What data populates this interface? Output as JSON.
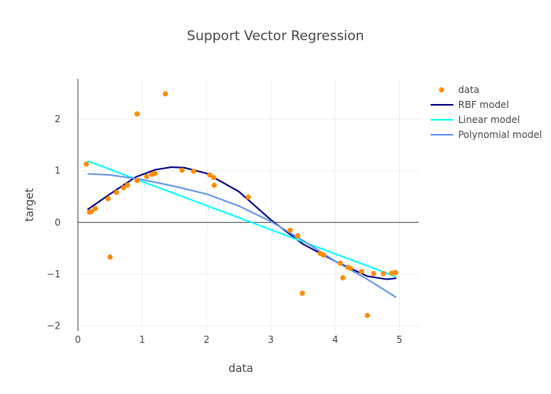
{
  "chart_data": {
    "type": "scatter",
    "title": "Support Vector Regression",
    "xlabel": "data",
    "ylabel": "target",
    "xlim": [
      0,
      5.3
    ],
    "ylim": [
      -2.1,
      2.78
    ],
    "xticks": [
      0,
      1,
      2,
      3,
      4,
      5
    ],
    "yticks": [
      -2,
      -1,
      0,
      1,
      2
    ],
    "grid": true,
    "legend_position": "top-right-outside",
    "series": [
      {
        "name": "data",
        "mode": "markers",
        "color": "#ff8c00",
        "x": [
          0.13,
          0.18,
          0.21,
          0.27,
          0.47,
          0.5,
          0.6,
          0.71,
          0.77,
          0.92,
          0.92,
          1.07,
          1.15,
          1.2,
          1.36,
          1.62,
          1.8,
          2.05,
          2.11,
          2.12,
          2.65,
          3.3,
          3.42,
          3.49,
          3.77,
          3.82,
          4.08,
          4.12,
          4.2,
          4.24,
          4.41,
          4.5,
          4.6,
          4.75,
          4.88,
          4.94
        ],
        "y": [
          1.13,
          0.2,
          0.21,
          0.27,
          0.46,
          -0.67,
          0.58,
          0.67,
          0.72,
          2.1,
          0.81,
          0.89,
          0.93,
          0.95,
          2.49,
          1.01,
          0.99,
          0.92,
          0.87,
          0.72,
          0.49,
          -0.15,
          -0.26,
          -1.37,
          -0.6,
          -0.63,
          -0.79,
          -1.07,
          -0.87,
          -0.89,
          -0.95,
          -1.8,
          -0.99,
          -0.99,
          -0.98,
          -0.97
        ]
      },
      {
        "name": "RBF model",
        "mode": "lines",
        "color": "#000080",
        "x": [
          0.15,
          0.5,
          0.9,
          1.2,
          1.45,
          1.65,
          2.0,
          2.5,
          3.0,
          3.5,
          4.0,
          4.5,
          4.8,
          4.95
        ],
        "y": [
          0.25,
          0.55,
          0.88,
          1.02,
          1.07,
          1.06,
          0.95,
          0.6,
          0.05,
          -0.42,
          -0.75,
          -1.04,
          -1.1,
          -1.08
        ]
      },
      {
        "name": "Linear model",
        "mode": "lines",
        "color": "#00ffff",
        "x": [
          0.15,
          4.95
        ],
        "y": [
          1.19,
          -1.05
        ]
      },
      {
        "name": "Polynomial model",
        "mode": "lines",
        "color": "#6495ed",
        "x": [
          0.15,
          0.5,
          1.0,
          1.5,
          2.0,
          2.5,
          3.0,
          3.5,
          4.0,
          4.5,
          4.95
        ],
        "y": [
          0.94,
          0.92,
          0.83,
          0.7,
          0.55,
          0.32,
          0.02,
          -0.35,
          -0.75,
          -1.1,
          -1.45
        ]
      }
    ]
  }
}
